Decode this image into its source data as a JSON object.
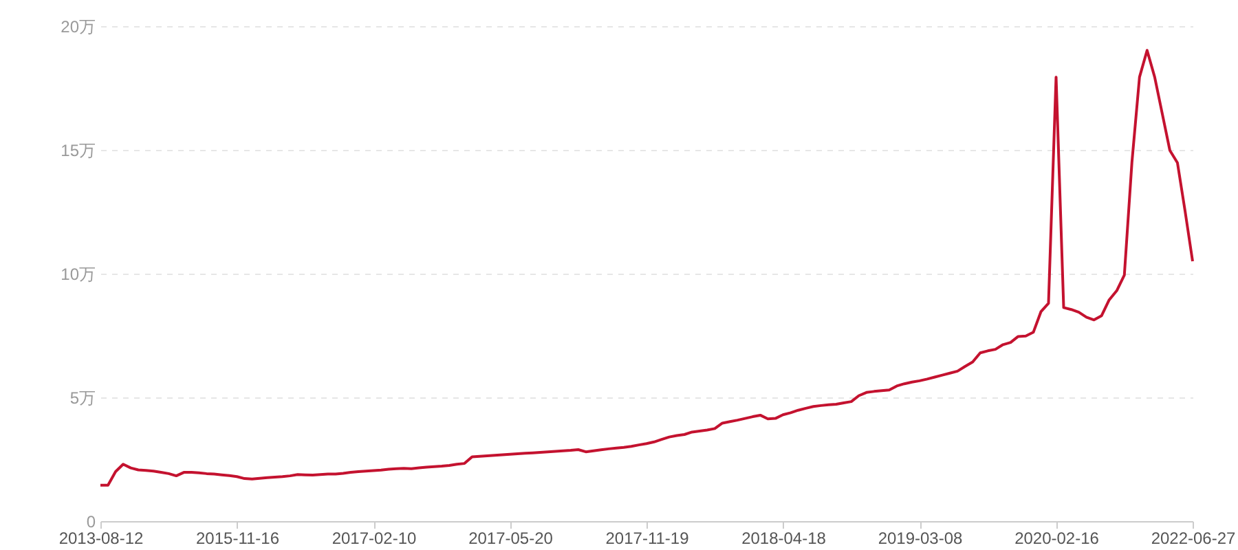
{
  "chart_data": {
    "type": "line",
    "categories": [
      "2013-08-12",
      null,
      null,
      null,
      null,
      null,
      null,
      null,
      null,
      null,
      null,
      null,
      null,
      null,
      null,
      null,
      null,
      null,
      "2015-11-16",
      null,
      null,
      null,
      null,
      null,
      null,
      null,
      null,
      null,
      null,
      null,
      null,
      null,
      null,
      null,
      null,
      null,
      "2017-02-10",
      null,
      null,
      null,
      null,
      null,
      null,
      null,
      null,
      null,
      null,
      null,
      null,
      null,
      null,
      null,
      null,
      null,
      "2017-05-20",
      null,
      null,
      null,
      null,
      null,
      null,
      null,
      null,
      null,
      null,
      null,
      null,
      null,
      null,
      null,
      null,
      null,
      "2017-11-19",
      null,
      null,
      null,
      null,
      null,
      null,
      null,
      null,
      null,
      null,
      null,
      null,
      null,
      null,
      null,
      null,
      null,
      "2018-04-18",
      null,
      null,
      null,
      null,
      null,
      null,
      null,
      null,
      null,
      null,
      null,
      null,
      null,
      null,
      null,
      null,
      null,
      "2019-03-08",
      null,
      null,
      null,
      null,
      null,
      null,
      null,
      null,
      null,
      null,
      null,
      null,
      null,
      null,
      null,
      null,
      null,
      "2020-02-16",
      null,
      null,
      null,
      null,
      null,
      null,
      null,
      null,
      null,
      null,
      null,
      null,
      null,
      null,
      null,
      null,
      null,
      "2022-06-27"
    ],
    "series": [
      {
        "color": "#c4122f",
        "values": [
          1.45,
          1.45,
          2.0,
          2.3,
          2.15,
          2.07,
          2.05,
          2.02,
          1.97,
          1.92,
          1.83,
          1.97,
          1.97,
          1.95,
          1.92,
          1.9,
          1.87,
          1.84,
          1.8,
          1.72,
          1.7,
          1.73,
          1.76,
          1.78,
          1.8,
          1.83,
          1.88,
          1.87,
          1.86,
          1.88,
          1.9,
          1.9,
          1.93,
          1.97,
          2.0,
          2.02,
          2.04,
          2.06,
          2.1,
          2.12,
          2.13,
          2.12,
          2.15,
          2.18,
          2.2,
          2.22,
          2.25,
          2.3,
          2.33,
          2.6,
          2.62,
          2.64,
          2.66,
          2.68,
          2.7,
          2.72,
          2.74,
          2.76,
          2.78,
          2.8,
          2.82,
          2.84,
          2.86,
          2.89,
          2.8,
          2.84,
          2.88,
          2.92,
          2.95,
          2.98,
          3.02,
          3.08,
          3.13,
          3.2,
          3.3,
          3.4,
          3.46,
          3.5,
          3.6,
          3.64,
          3.68,
          3.74,
          3.96,
          4.02,
          4.08,
          4.15,
          4.22,
          4.28,
          4.13,
          4.15,
          4.3,
          4.38,
          4.48,
          4.56,
          4.63,
          4.67,
          4.7,
          4.72,
          4.78,
          4.83,
          5.07,
          5.2,
          5.24,
          5.27,
          5.3,
          5.46,
          5.55,
          5.62,
          5.67,
          5.74,
          5.82,
          5.9,
          5.98,
          6.06,
          6.25,
          6.43,
          6.8,
          6.88,
          6.94,
          7.13,
          7.22,
          7.46,
          7.48,
          7.63,
          8.46,
          8.8,
          17.94,
          8.63,
          8.55,
          8.44,
          8.24,
          8.13,
          8.3,
          8.94,
          9.31,
          9.94,
          14.5,
          17.94,
          19.02,
          17.94,
          16.46,
          14.98,
          14.48,
          12.54,
          10.5
        ]
      }
    ],
    "ylim": [
      0,
      20
    ],
    "yticks": [
      0,
      {
        "value": 5,
        "label": "5万"
      },
      {
        "value": 10,
        "label": "10万"
      },
      {
        "value": 15,
        "label": "15万"
      },
      {
        "value": 20,
        "label": "20万"
      }
    ],
    "grid": "y",
    "marker": "none",
    "line_style": "solid"
  }
}
